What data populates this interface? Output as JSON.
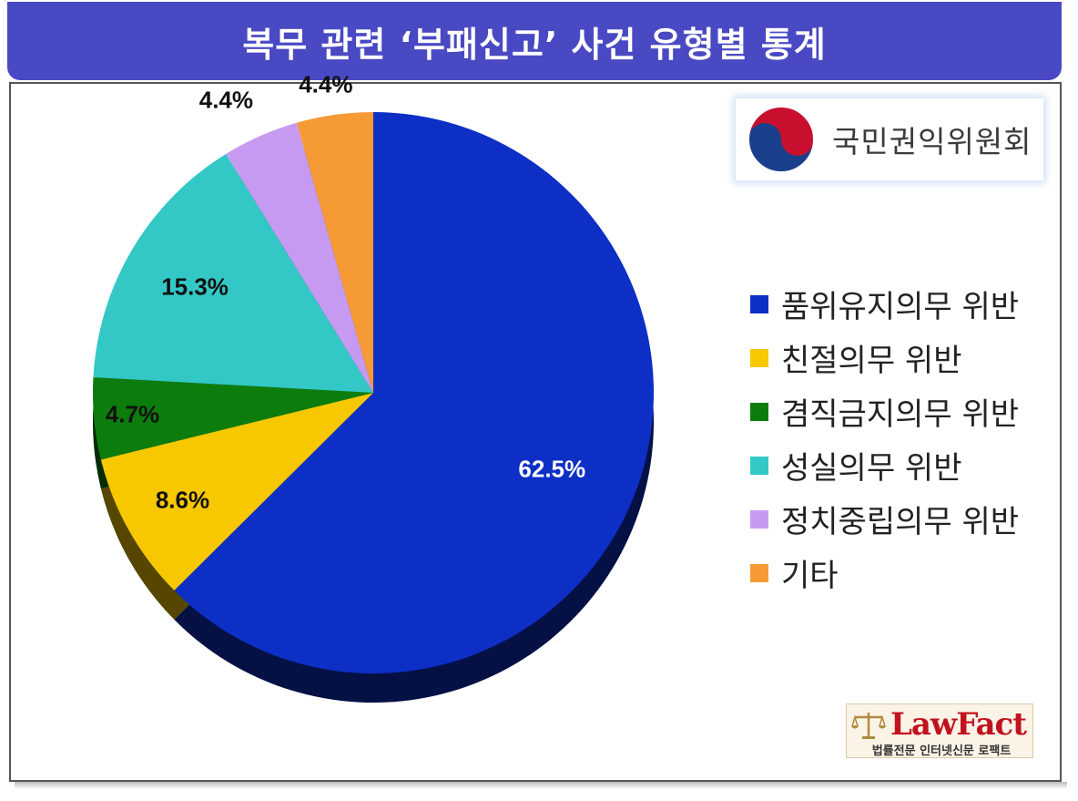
{
  "title": "복무 관련 ‘부패신고’ 사건 유형별 통계",
  "logo": {
    "org_name": "국민권익위원회"
  },
  "watermark": {
    "name": "LawFact",
    "tagline": "법률전문 인터넷신문 로팩트"
  },
  "chart_data": {
    "type": "pie",
    "title": "복무 관련 ‘부패신고’ 사건 유형별 통계",
    "legend_position": "right",
    "slices": [
      {
        "label": "품위유지의무 위반",
        "value": 62.5,
        "display": "62.5%",
        "color": "#0d2fc6"
      },
      {
        "label": "친절의무 위반",
        "value": 8.6,
        "display": "8.6%",
        "color": "#f7c800"
      },
      {
        "label": "겸직금지의무 위반",
        "value": 4.7,
        "display": "4.7%",
        "color": "#0c7d0c"
      },
      {
        "label": "성실의무 위반",
        "value": 15.3,
        "display": "15.3%",
        "color": "#33c8c6"
      },
      {
        "label": "정치중립의무 위반",
        "value": 4.4,
        "display": "4.4%",
        "color": "#c79af2"
      },
      {
        "label": "기타",
        "value": 4.4,
        "display": "4.4%",
        "color": "#f69a35"
      }
    ]
  }
}
